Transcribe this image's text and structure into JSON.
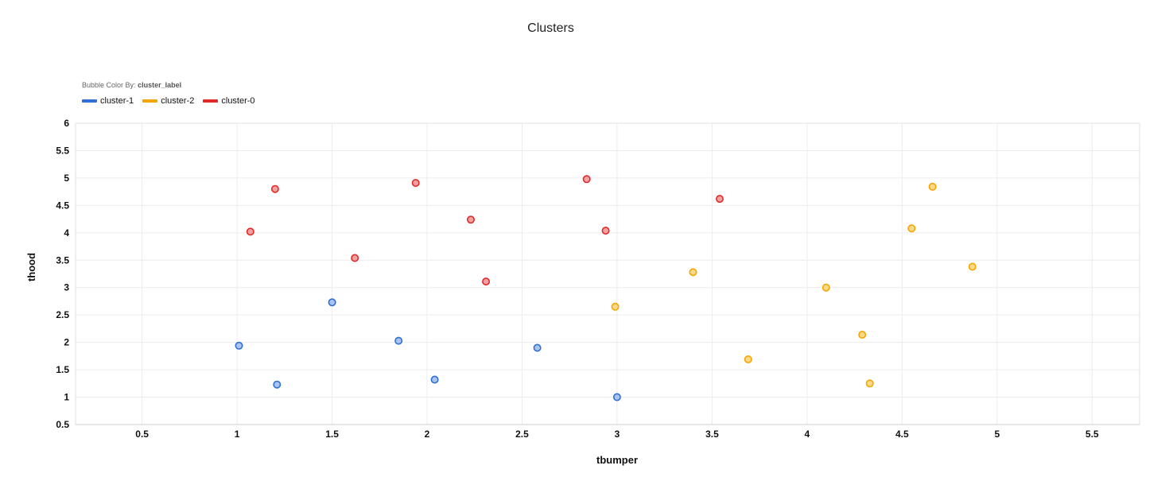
{
  "chart_data": {
    "type": "scatter",
    "title": "Clusters",
    "xlabel": "tbumper",
    "ylabel": "thood",
    "xlim": [
      0.15,
      5.75
    ],
    "ylim": [
      0.5,
      6
    ],
    "x_ticks": [
      "0.5",
      "1",
      "1.5",
      "2",
      "2.5",
      "3",
      "3.5",
      "4",
      "4.5",
      "5",
      "5.5"
    ],
    "y_ticks": [
      "0.5",
      "1",
      "1.5",
      "2",
      "2.5",
      "3",
      "3.5",
      "4",
      "4.5",
      "5",
      "5.5",
      "6"
    ],
    "grid": true,
    "legend_position": "top-left",
    "color_by_label": "Bubble Color By:",
    "color_by_field": "cluster_label",
    "series": [
      {
        "name": "cluster-1",
        "color": "#2f6fd6",
        "fill": "#a9c4ee",
        "points": [
          [
            1.01,
            1.94
          ],
          [
            1.21,
            1.23
          ],
          [
            1.5,
            2.73
          ],
          [
            1.85,
            2.03
          ],
          [
            2.04,
            1.32
          ],
          [
            2.58,
            1.9
          ],
          [
            3.0,
            1.0
          ]
        ]
      },
      {
        "name": "cluster-2",
        "color": "#f5a500",
        "fill": "#fbd98a",
        "points": [
          [
            2.99,
            2.65
          ],
          [
            3.4,
            3.28
          ],
          [
            3.69,
            1.69
          ],
          [
            4.1,
            3.0
          ],
          [
            4.29,
            2.14
          ],
          [
            4.33,
            1.25
          ],
          [
            4.55,
            4.08
          ],
          [
            4.66,
            4.84
          ],
          [
            4.87,
            3.38
          ]
        ]
      },
      {
        "name": "cluster-0",
        "color": "#e02a2a",
        "fill": "#f2a0a0",
        "points": [
          [
            1.07,
            4.02
          ],
          [
            1.2,
            4.8
          ],
          [
            1.62,
            3.54
          ],
          [
            1.94,
            4.91
          ],
          [
            2.23,
            4.24
          ],
          [
            2.31,
            3.11
          ],
          [
            2.84,
            4.98
          ],
          [
            2.94,
            4.04
          ],
          [
            3.54,
            4.62
          ]
        ]
      }
    ]
  }
}
